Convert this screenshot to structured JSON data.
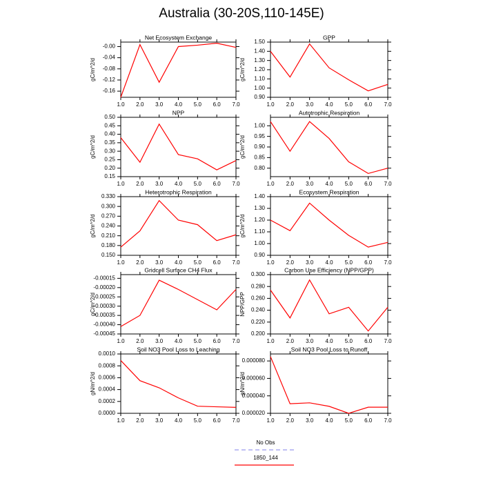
{
  "title": "Australia (30-20S,110-145E)",
  "legend": [
    {
      "name": "No Obs",
      "color": "#9999ee",
      "dash": true
    },
    {
      "name": "1850_144",
      "color": "#ff0000",
      "dash": false
    }
  ],
  "chart_data": [
    {
      "type": "line",
      "title": "Net Ecosystem Exchange",
      "ylabel": "gC/m^2/d",
      "color": "#ff0000",
      "x": [
        1,
        2,
        3,
        4,
        5,
        6,
        7
      ],
      "values": [
        -0.182,
        0.007,
        -0.128,
        0.0,
        0.005,
        0.012,
        -0.003
      ],
      "xlim": [
        1,
        7
      ],
      "xticks": [
        {
          "value": 1,
          "label": "1.0"
        },
        {
          "value": 2,
          "label": "2.0"
        },
        {
          "value": 3,
          "label": "3.0"
        },
        {
          "value": 4,
          "label": "4.0"
        },
        {
          "value": 5,
          "label": "5.0"
        },
        {
          "value": 6,
          "label": "6.0"
        },
        {
          "value": 7,
          "label": "7.0"
        }
      ],
      "ylim": [
        -0.182,
        0.016
      ],
      "yticks": [
        -0.16,
        -0.12,
        -0.08,
        -0.04,
        {
          "value": 0,
          "label": "-0.00"
        }
      ]
    },
    {
      "type": "line",
      "title": "GPP",
      "ylabel": "gC/m^2/d",
      "color": "#ff0000",
      "x": [
        1,
        2,
        3,
        4,
        5,
        6,
        7
      ],
      "values": [
        1.4,
        1.12,
        1.48,
        1.22,
        1.09,
        0.97,
        1.04
      ],
      "xlim": [
        1,
        7
      ],
      "xticks": [
        {
          "value": 1,
          "label": "1.0"
        },
        {
          "value": 2,
          "label": "2.0"
        },
        {
          "value": 3,
          "label": "3.0"
        },
        {
          "value": 4,
          "label": "4.0"
        },
        {
          "value": 5,
          "label": "5.0"
        },
        {
          "value": 6,
          "label": "6.0"
        },
        {
          "value": 7,
          "label": "7.0"
        }
      ],
      "ylim": [
        0.9,
        1.5
      ],
      "yticks": [
        {
          "value": 0.9,
          "label": "0.90"
        },
        {
          "value": 1.0,
          "label": "1.00"
        },
        {
          "value": 1.1,
          "label": "1.10"
        },
        {
          "value": 1.2,
          "label": "1.20"
        },
        {
          "value": 1.3,
          "label": "1.30"
        },
        {
          "value": 1.4,
          "label": "1.40"
        },
        {
          "value": 1.5,
          "label": "1.50"
        }
      ]
    },
    {
      "type": "line",
      "title": "NPP",
      "ylabel": "gC/m^2/d",
      "color": "#ff0000",
      "x": [
        1,
        2,
        3,
        4,
        5,
        6,
        7
      ],
      "values": [
        0.38,
        0.235,
        0.46,
        0.28,
        0.255,
        0.19,
        0.245
      ],
      "xlim": [
        1,
        7
      ],
      "xticks": [
        {
          "value": 1,
          "label": "1.0"
        },
        {
          "value": 2,
          "label": "2.0"
        },
        {
          "value": 3,
          "label": "3.0"
        },
        {
          "value": 4,
          "label": "4.0"
        },
        {
          "value": 5,
          "label": "5.0"
        },
        {
          "value": 6,
          "label": "6.0"
        },
        {
          "value": 7,
          "label": "7.0"
        }
      ],
      "ylim": [
        0.15,
        0.5
      ],
      "yticks": [
        {
          "value": 0.15,
          "label": "0.15"
        },
        {
          "value": 0.2,
          "label": "0.20"
        },
        {
          "value": 0.25,
          "label": "0.25"
        },
        {
          "value": 0.3,
          "label": "0.30"
        },
        {
          "value": 0.35,
          "label": "0.35"
        },
        {
          "value": 0.4,
          "label": "0.40"
        },
        {
          "value": 0.45,
          "label": "0.45"
        },
        {
          "value": 0.5,
          "label": "0.50"
        }
      ]
    },
    {
      "type": "line",
      "title": "Autotrophic Respiration",
      "ylabel": "gC/m^2/d",
      "color": "#ff0000",
      "x": [
        1,
        2,
        3,
        4,
        5,
        6,
        7
      ],
      "values": [
        1.02,
        0.88,
        1.02,
        0.94,
        0.83,
        0.775,
        0.8
      ],
      "xlim": [
        1,
        7
      ],
      "xticks": [
        {
          "value": 1,
          "label": "1.0"
        },
        {
          "value": 2,
          "label": "2.0"
        },
        {
          "value": 3,
          "label": "3.0"
        },
        {
          "value": 4,
          "label": "4.0"
        },
        {
          "value": 5,
          "label": "5.0"
        },
        {
          "value": 6,
          "label": "6.0"
        },
        {
          "value": 7,
          "label": "7.0"
        }
      ],
      "ylim": [
        0.76,
        1.04
      ],
      "yticks": [
        {
          "value": 0.8,
          "label": "0.80"
        },
        {
          "value": 0.85,
          "label": "0.85"
        },
        {
          "value": 0.9,
          "label": "0.90"
        },
        {
          "value": 0.95,
          "label": "0.95"
        },
        {
          "value": 1.0,
          "label": "1.00"
        }
      ]
    },
    {
      "type": "line",
      "title": "Heterotrophic Respiration",
      "ylabel": "gC/m^2/d",
      "color": "#ff0000",
      "x": [
        1,
        2,
        3,
        4,
        5,
        6,
        7
      ],
      "values": [
        0.175,
        0.225,
        0.318,
        0.258,
        0.244,
        0.195,
        0.213
      ],
      "xlim": [
        1,
        7
      ],
      "xticks": [
        {
          "value": 1,
          "label": "1.0"
        },
        {
          "value": 2,
          "label": "2.0"
        },
        {
          "value": 3,
          "label": "3.0"
        },
        {
          "value": 4,
          "label": "4.0"
        },
        {
          "value": 5,
          "label": "5.0"
        },
        {
          "value": 6,
          "label": "6.0"
        },
        {
          "value": 7,
          "label": "7.0"
        }
      ],
      "ylim": [
        0.15,
        0.33
      ],
      "yticks": [
        {
          "value": 0.15,
          "label": "0.150"
        },
        {
          "value": 0.18,
          "label": "0.180"
        },
        {
          "value": 0.21,
          "label": "0.210"
        },
        {
          "value": 0.24,
          "label": "0.240"
        },
        {
          "value": 0.27,
          "label": "0.270"
        },
        {
          "value": 0.3,
          "label": "0.300"
        },
        {
          "value": 0.33,
          "label": "0.330"
        }
      ]
    },
    {
      "type": "line",
      "title": "Ecosystem Respiration",
      "ylabel": "gC/m^2/d",
      "color": "#ff0000",
      "x": [
        1,
        2,
        3,
        4,
        5,
        6,
        7
      ],
      "values": [
        1.2,
        1.11,
        1.345,
        1.2,
        1.07,
        0.97,
        1.01
      ],
      "xlim": [
        1,
        7
      ],
      "xticks": [
        {
          "value": 1,
          "label": "1.0"
        },
        {
          "value": 2,
          "label": "2.0"
        },
        {
          "value": 3,
          "label": "3.0"
        },
        {
          "value": 4,
          "label": "4.0"
        },
        {
          "value": 5,
          "label": "5.0"
        },
        {
          "value": 6,
          "label": "6.0"
        },
        {
          "value": 7,
          "label": "7.0"
        }
      ],
      "ylim": [
        0.9,
        1.4
      ],
      "yticks": [
        {
          "value": 0.9,
          "label": "0.90"
        },
        {
          "value": 1.0,
          "label": "1.00"
        },
        {
          "value": 1.1,
          "label": "1.10"
        },
        {
          "value": 1.2,
          "label": "1.20"
        },
        {
          "value": 1.3,
          "label": "1.30"
        },
        {
          "value": 1.4,
          "label": "1.40"
        }
      ]
    },
    {
      "type": "line",
      "title": "Gridcell Surface CH4 Flux",
      "ylabel": "gC/m^2/d",
      "color": "#ff0000",
      "x": [
        1,
        2,
        3,
        4,
        5,
        6,
        7
      ],
      "values": [
        -0.00041,
        -0.00035,
        -0.00016,
        -0.00021,
        -0.000265,
        -0.00032,
        -0.00021
      ],
      "xlim": [
        1,
        7
      ],
      "xticks": [
        {
          "value": 1,
          "label": "1.0"
        },
        {
          "value": 2,
          "label": "2.0"
        },
        {
          "value": 3,
          "label": "3.0"
        },
        {
          "value": 4,
          "label": "4.0"
        },
        {
          "value": 5,
          "label": "5.0"
        },
        {
          "value": 6,
          "label": "6.0"
        },
        {
          "value": 7,
          "label": "7.0"
        }
      ],
      "ylim": [
        -0.00045,
        -0.00013
      ],
      "yticks": [
        {
          "value": -0.00045,
          "label": "-0.00045"
        },
        {
          "value": -0.0004,
          "label": "-0.00040"
        },
        {
          "value": -0.00035,
          "label": "-0.00035"
        },
        {
          "value": -0.0003,
          "label": "-0.00030"
        },
        {
          "value": -0.00025,
          "label": "-0.00025"
        },
        {
          "value": -0.0002,
          "label": "-0.00020"
        },
        {
          "value": -0.00015,
          "label": "-0.00015"
        }
      ]
    },
    {
      "type": "line",
      "title": "Carbon Use Efficiency (NPP/GPP)",
      "ylabel": "NPP/GPP",
      "color": "#ff0000",
      "x": [
        1,
        2,
        3,
        4,
        5,
        6,
        7
      ],
      "values": [
        0.274,
        0.227,
        0.291,
        0.234,
        0.245,
        0.205,
        0.245
      ],
      "xlim": [
        1,
        7
      ],
      "xticks": [
        {
          "value": 1,
          "label": "1.0"
        },
        {
          "value": 2,
          "label": "2.0"
        },
        {
          "value": 3,
          "label": "3.0"
        },
        {
          "value": 4,
          "label": "4.0"
        },
        {
          "value": 5,
          "label": "5.0"
        },
        {
          "value": 6,
          "label": "6.0"
        },
        {
          "value": 7,
          "label": "7.0"
        }
      ],
      "ylim": [
        0.2,
        0.3
      ],
      "yticks": [
        {
          "value": 0.2,
          "label": "0.200"
        },
        {
          "value": 0.22,
          "label": "0.220"
        },
        {
          "value": 0.24,
          "label": "0.240"
        },
        {
          "value": 0.26,
          "label": "0.260"
        },
        {
          "value": 0.28,
          "label": "0.280"
        },
        {
          "value": 0.3,
          "label": "0.300"
        }
      ]
    },
    {
      "type": "line",
      "title": "Soil NO3 Pool Loss to Leaching",
      "ylabel": "gN/m^2/d",
      "color": "#ff0000",
      "x": [
        1,
        2,
        3,
        4,
        5,
        6,
        7
      ],
      "values": [
        0.00089,
        0.00055,
        0.00043,
        0.00026,
        0.00012,
        0.00011,
        0.0001
      ],
      "xlim": [
        1,
        7
      ],
      "xticks": [
        {
          "value": 1,
          "label": "1.0"
        },
        {
          "value": 2,
          "label": "2.0"
        },
        {
          "value": 3,
          "label": "3.0"
        },
        {
          "value": 4,
          "label": "4.0"
        },
        {
          "value": 5,
          "label": "5.0"
        },
        {
          "value": 6,
          "label": "6.0"
        },
        {
          "value": 7,
          "label": "7.0"
        }
      ],
      "ylim": [
        0,
        0.001
      ],
      "yticks": [
        {
          "value": 0,
          "label": "0.0000"
        },
        {
          "value": 0.0002,
          "label": "0.0002"
        },
        {
          "value": 0.0004,
          "label": "0.0004"
        },
        {
          "value": 0.0006,
          "label": "0.0006"
        },
        {
          "value": 0.0008,
          "label": "0.0008"
        },
        {
          "value": 0.001,
          "label": "0.0010"
        }
      ]
    },
    {
      "type": "line",
      "title": "Soil NO3 Pool Loss to Runoff",
      "ylabel": "gN/m^2/d",
      "color": "#ff0000",
      "x": [
        1,
        2,
        3,
        4,
        5,
        6,
        7
      ],
      "values": [
        8.5e-05,
        3.1e-05,
        3.2e-05,
        2.8e-05,
        2e-05,
        2.7e-05,
        2.7e-05
      ],
      "xlim": [
        1,
        7
      ],
      "xticks": [
        {
          "value": 1,
          "label": "1.0"
        },
        {
          "value": 2,
          "label": "2.0"
        },
        {
          "value": 3,
          "label": "3.0"
        },
        {
          "value": 4,
          "label": "4.0"
        },
        {
          "value": 5,
          "label": "5.0"
        },
        {
          "value": 6,
          "label": "6.0"
        },
        {
          "value": 7,
          "label": "7.0"
        }
      ],
      "ylim": [
        2e-05,
        8.8e-05
      ],
      "yticks": [
        {
          "value": 2e-05,
          "label": "0.000020"
        },
        {
          "value": 4e-05,
          "label": "0.000040"
        },
        {
          "value": 6e-05,
          "label": "0.000060"
        },
        {
          "value": 8e-05,
          "label": "0.000080"
        }
      ]
    }
  ]
}
